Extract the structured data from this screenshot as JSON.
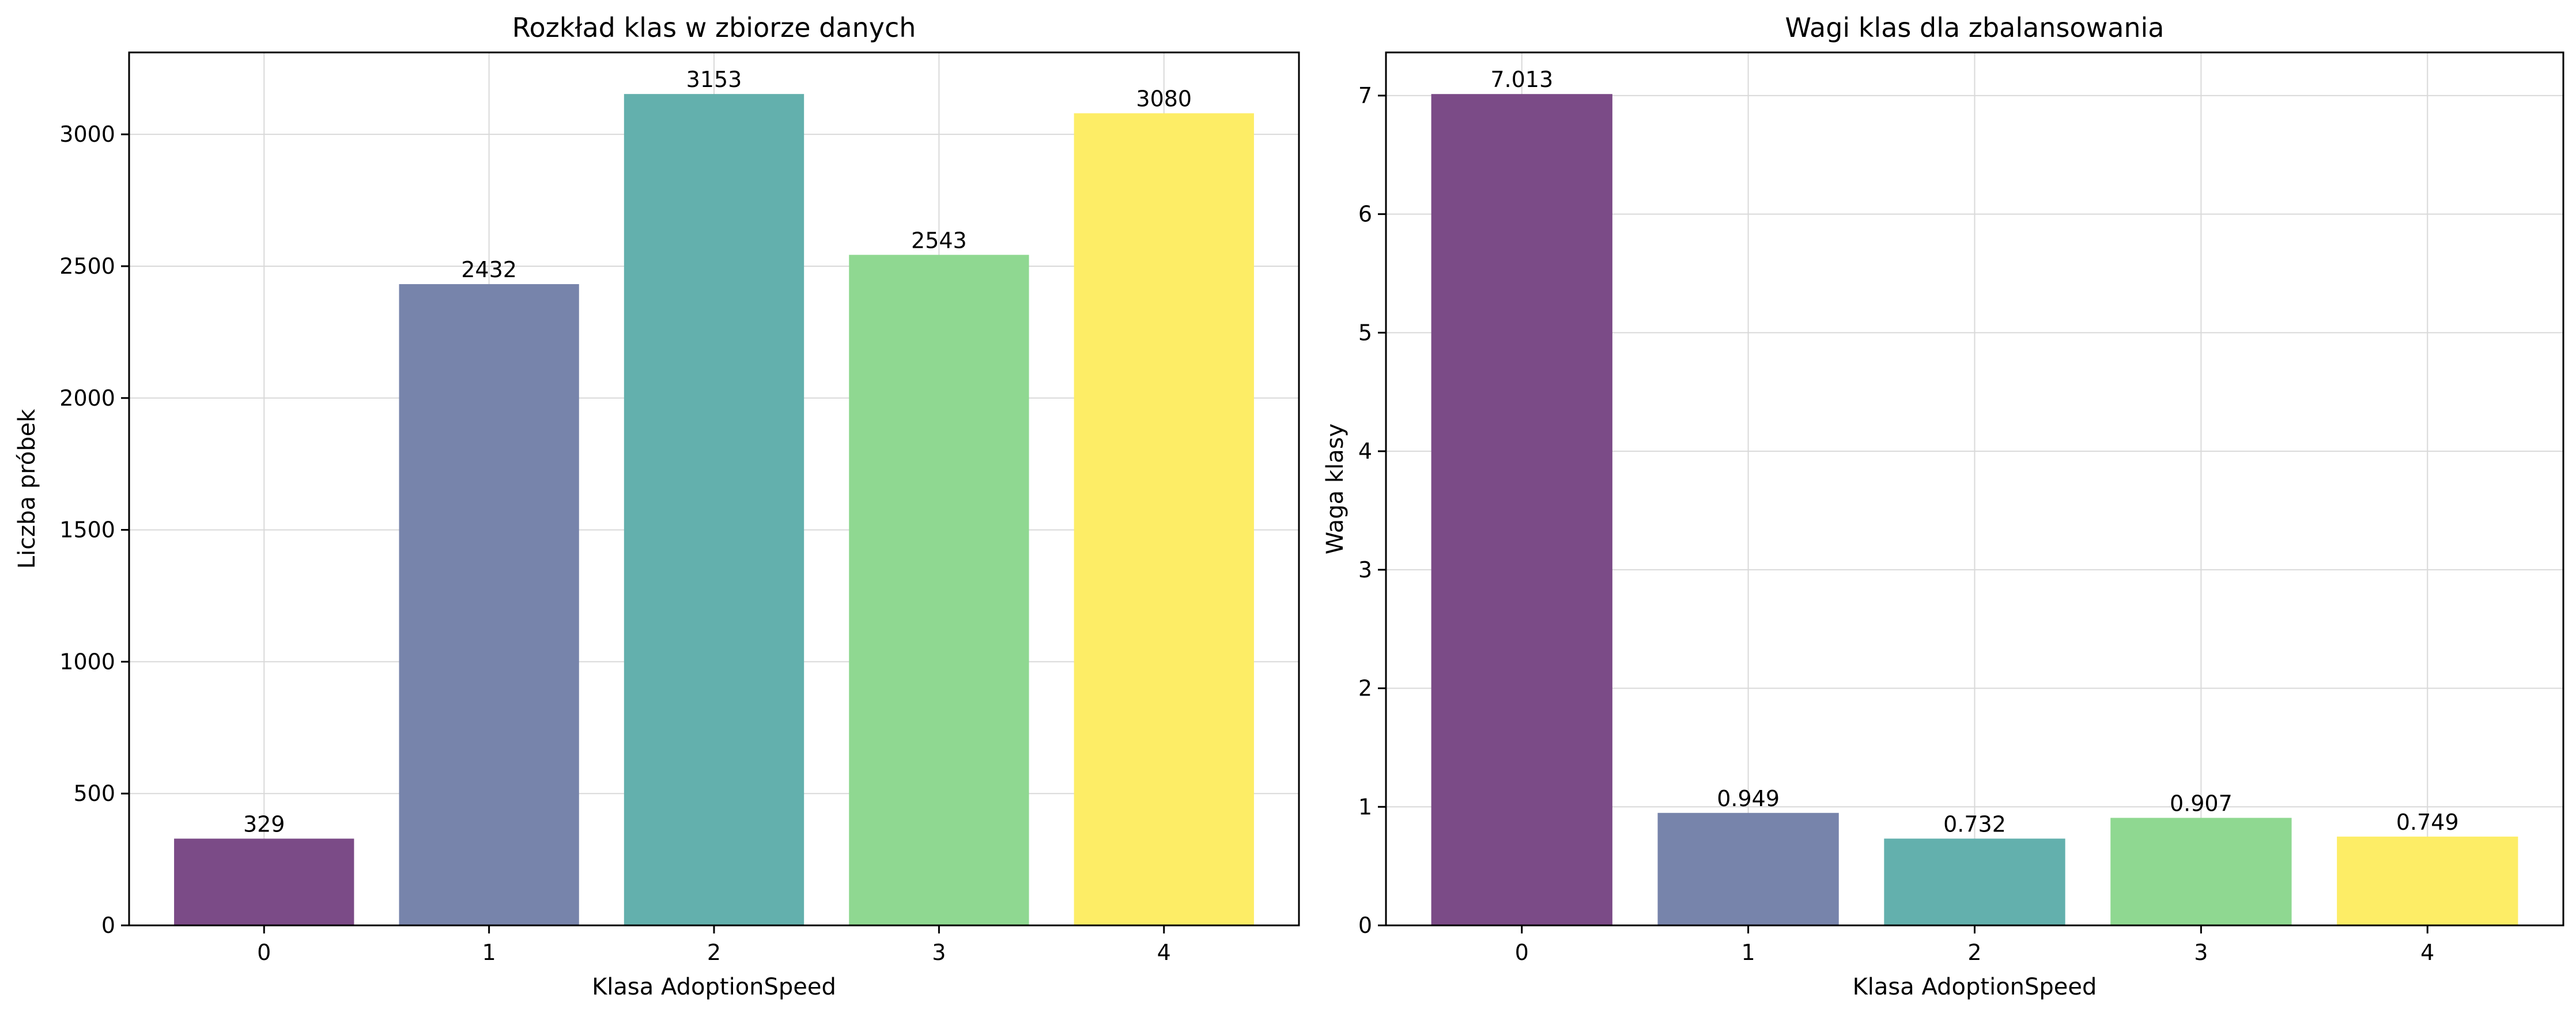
{
  "chart_data": [
    {
      "type": "bar",
      "title": "Rozkład klas w zbiorze danych",
      "xlabel": "Klasa AdoptionSpeed",
      "ylabel": "Liczba próbek",
      "categories": [
        "0",
        "1",
        "2",
        "3",
        "4"
      ],
      "values": [
        329,
        2432,
        3153,
        2543,
        3080
      ],
      "value_labels": [
        "329",
        "2432",
        "3153",
        "2543",
        "3080"
      ],
      "colors": [
        "#7b4b87",
        "#7784ab",
        "#63b0ad",
        "#8fd891",
        "#fded66"
      ],
      "ylim": [
        0,
        3310.65
      ],
      "yticks": [
        0,
        500,
        1000,
        1500,
        2000,
        2500,
        3000
      ],
      "ytick_labels": [
        "0",
        "500",
        "1000",
        "1500",
        "2000",
        "2500",
        "3000"
      ],
      "grid": true
    },
    {
      "type": "bar",
      "title": "Wagi klas dla zbalansowania",
      "xlabel": "Klasa AdoptionSpeed",
      "ylabel": "Waga klasy",
      "categories": [
        "0",
        "1",
        "2",
        "3",
        "4"
      ],
      "values": [
        7.013,
        0.949,
        0.732,
        0.907,
        0.749
      ],
      "value_labels": [
        "7.013",
        "0.949",
        "0.732",
        "0.907",
        "0.749"
      ],
      "colors": [
        "#7b4b87",
        "#7784ab",
        "#63b0ad",
        "#8fd891",
        "#fded66"
      ],
      "ylim": [
        0,
        7.364
      ],
      "yticks": [
        0,
        1,
        2,
        3,
        4,
        5,
        6,
        7
      ],
      "ytick_labels": [
        "0",
        "1",
        "2",
        "3",
        "4",
        "5",
        "6",
        "7"
      ],
      "grid": true
    }
  ]
}
